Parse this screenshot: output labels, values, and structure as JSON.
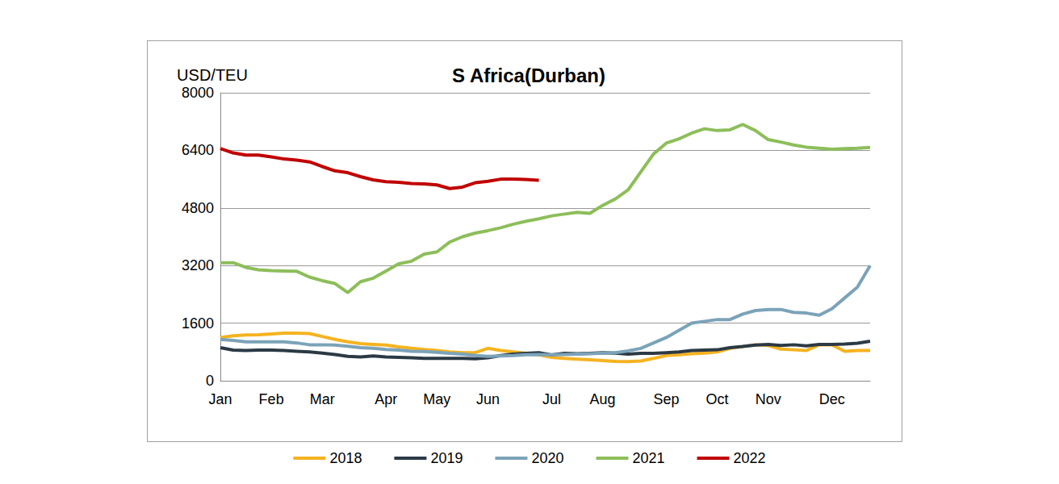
{
  "chart_data": {
    "type": "line",
    "title": "S Africa(Durban)",
    "ylabel": "USD/TEU",
    "categories": [
      "Jan",
      null,
      null,
      null,
      "Feb",
      null,
      null,
      null,
      "Mar",
      null,
      null,
      null,
      null,
      "Apr",
      null,
      null,
      null,
      "May",
      null,
      null,
      null,
      "Jun",
      null,
      null,
      null,
      null,
      "Jul",
      null,
      null,
      null,
      "Aug",
      null,
      null,
      null,
      null,
      "Sep",
      null,
      null,
      null,
      "Oct",
      null,
      null,
      null,
      "Nov",
      null,
      null,
      null,
      null,
      "Dec",
      null,
      null,
      null
    ],
    "series": [
      {
        "name": "2018",
        "color": "#f5b321",
        "values": [
          1200,
          1250,
          1270,
          1280,
          1300,
          1320,
          1320,
          1310,
          1230,
          1150,
          1080,
          1030,
          1010,
          990,
          940,
          900,
          870,
          840,
          800,
          780,
          780,
          900,
          840,
          800,
          760,
          720,
          650,
          620,
          600,
          580,
          560,
          540,
          530,
          550,
          620,
          700,
          720,
          750,
          770,
          800,
          900,
          950,
          1000,
          980,
          880,
          860,
          840,
          1000,
          1000,
          820,
          840,
          840
        ]
      },
      {
        "name": "2019",
        "color": "#2b3a45",
        "values": [
          920,
          850,
          840,
          850,
          850,
          840,
          820,
          800,
          770,
          730,
          680,
          660,
          690,
          660,
          650,
          640,
          620,
          620,
          620,
          620,
          610,
          640,
          700,
          740,
          760,
          780,
          720,
          760,
          750,
          760,
          780,
          770,
          740,
          760,
          760,
          780,
          800,
          840,
          850,
          860,
          920,
          950,
          990,
          1010,
          980,
          1000,
          970,
          1010,
          1010,
          1020,
          1040,
          1100
        ]
      },
      {
        "name": "2020",
        "color": "#7ba3b8",
        "values": [
          1150,
          1120,
          1080,
          1080,
          1080,
          1080,
          1050,
          1000,
          1000,
          990,
          960,
          920,
          900,
          870,
          850,
          820,
          810,
          790,
          760,
          740,
          700,
          680,
          690,
          700,
          720,
          730,
          720,
          730,
          740,
          750,
          770,
          780,
          830,
          900,
          1050,
          1200,
          1400,
          1600,
          1650,
          1700,
          1700,
          1850,
          1950,
          1980,
          1980,
          1900,
          1880,
          1820,
          2000,
          2300,
          2600,
          3200
        ]
      },
      {
        "name": "2021",
        "color": "#8dbe5a",
        "values": [
          3280,
          3280,
          3150,
          3080,
          3060,
          3050,
          3040,
          2880,
          2780,
          2700,
          2450,
          2750,
          2850,
          3050,
          3250,
          3320,
          3520,
          3580,
          3850,
          4000,
          4100,
          4170,
          4250,
          4350,
          4430,
          4500,
          4580,
          4630,
          4680,
          4650,
          4870,
          5050,
          5300,
          5800,
          6300,
          6600,
          6720,
          6880,
          7000,
          6950,
          6970,
          7120,
          6950,
          6700,
          6630,
          6550,
          6490,
          6460,
          6430,
          6450,
          6460,
          6480
        ]
      },
      {
        "name": "2022",
        "color": "#c00000",
        "values": [
          6450,
          6330,
          6270,
          6270,
          6220,
          6160,
          6130,
          6080,
          5950,
          5830,
          5780,
          5670,
          5580,
          5530,
          5510,
          5480,
          5470,
          5440,
          5340,
          5380,
          5500,
          5540,
          5600,
          5600,
          5590,
          5570,
          null,
          null,
          null,
          null,
          null,
          null,
          null,
          null,
          null,
          null,
          null,
          null,
          null,
          null,
          null,
          null,
          null,
          null,
          null,
          null,
          null,
          null,
          null,
          null,
          null,
          null
        ]
      }
    ],
    "ylim": [
      0,
      8000
    ],
    "yticks": [
      0,
      1600,
      3200,
      4800,
      6400,
      8000
    ],
    "grid": true,
    "legend": "bottom"
  }
}
